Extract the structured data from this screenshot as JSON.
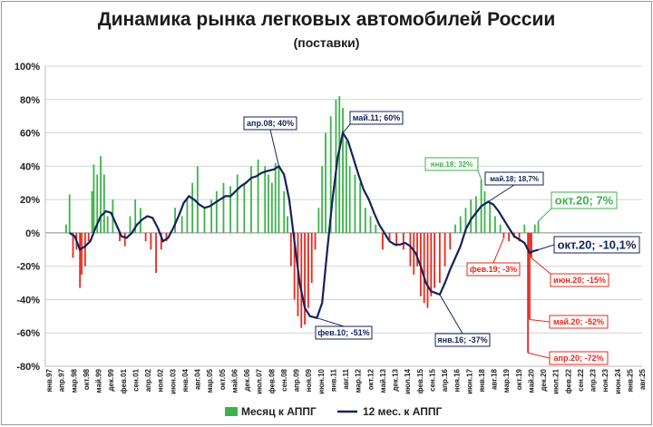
{
  "chart_data": {
    "type": "bar+line",
    "title": "Динамика рынка легковых автомобилей России",
    "subtitle": "(поставки)",
    "ylim": [
      -80,
      100
    ],
    "yticks": [
      "100%",
      "80%",
      "60%",
      "40%",
      "20%",
      "0%",
      "-20%",
      "-40%",
      "-60%",
      "-80%"
    ],
    "x_range": [
      "янв.97",
      "окт.25"
    ],
    "xticks": [
      "янв.97",
      "апр.97",
      "мар.98",
      "окт.98",
      "май.99",
      "дек.99",
      "фев.01",
      "сен.01",
      "апр.02",
      "ноя.02",
      "июн.03",
      "янв.04",
      "авг.04",
      "мар.05",
      "окт.05",
      "май.06",
      "дек.06",
      "июл.07",
      "фев.08",
      "сен.08",
      "апр.09",
      "ноя.09",
      "июн.10",
      "янв.11",
      "авг.11",
      "мар.12",
      "окт.12",
      "май.13",
      "дек.13",
      "июл.14",
      "фев.15",
      "сен.15",
      "апр.16",
      "ноя.16",
      "июн.17",
      "янв.18",
      "авг.18",
      "мар.19",
      "окт.19",
      "май.20",
      "дек.20",
      "июл.21",
      "фев.22",
      "сен.22",
      "апр.23",
      "ноя.23",
      "июн.24",
      "янв.25",
      "авг.25"
    ],
    "grid": true,
    "legend_position": "bottom",
    "colors": {
      "positive": "#3cb34a",
      "negative": "#e8281e",
      "line": "#15225a"
    },
    "series": [
      {
        "name": "Месяц к АППГ",
        "kind": "bar",
        "points": [
          [
            "1998-01",
            5
          ],
          [
            "1998-03",
            23
          ],
          [
            "1998-05",
            -15
          ],
          [
            "1998-07",
            -10
          ],
          [
            "1998-09",
            -33
          ],
          [
            "1998-10",
            -25
          ],
          [
            "1998-12",
            -20
          ],
          [
            "1999-02",
            -5
          ],
          [
            "1999-04",
            25
          ],
          [
            "1999-05",
            41
          ],
          [
            "1999-07",
            35
          ],
          [
            "1999-09",
            46
          ],
          [
            "1999-11",
            35
          ],
          [
            "2000-01",
            10
          ],
          [
            "2000-04",
            20
          ],
          [
            "2000-08",
            -5
          ],
          [
            "2000-11",
            -8
          ],
          [
            "2001-02",
            10
          ],
          [
            "2001-05",
            20
          ],
          [
            "2001-08",
            15
          ],
          [
            "2001-11",
            -5
          ],
          [
            "2002-02",
            -10
          ],
          [
            "2002-05",
            -24
          ],
          [
            "2002-08",
            -10
          ],
          [
            "2002-11",
            -5
          ],
          [
            "2003-04",
            15
          ],
          [
            "2003-08",
            10
          ],
          [
            "2003-11",
            20
          ],
          [
            "2004-02",
            30
          ],
          [
            "2004-05",
            40
          ],
          [
            "2004-09",
            15
          ],
          [
            "2005-01",
            20
          ],
          [
            "2005-04",
            25
          ],
          [
            "2005-08",
            30
          ],
          [
            "2005-12",
            28
          ],
          [
            "2006-04",
            35
          ],
          [
            "2006-08",
            30
          ],
          [
            "2006-12",
            40
          ],
          [
            "2007-04",
            44
          ],
          [
            "2007-08",
            40
          ],
          [
            "2007-10",
            35
          ],
          [
            "2007-12",
            30
          ],
          [
            "2008-02",
            42
          ],
          [
            "2008-04",
            40
          ],
          [
            "2008-07",
            25
          ],
          [
            "2008-09",
            10
          ],
          [
            "2008-11",
            -20
          ],
          [
            "2009-01",
            -40
          ],
          [
            "2009-03",
            -50
          ],
          [
            "2009-05",
            -57
          ],
          [
            "2009-07",
            -55
          ],
          [
            "2009-09",
            -45
          ],
          [
            "2009-11",
            -30
          ],
          [
            "2010-01",
            -10
          ],
          [
            "2010-03",
            15
          ],
          [
            "2010-05",
            40
          ],
          [
            "2010-07",
            60
          ],
          [
            "2010-10",
            70
          ],
          [
            "2011-01",
            80
          ],
          [
            "2011-03",
            82
          ],
          [
            "2011-05",
            75
          ],
          [
            "2011-07",
            55
          ],
          [
            "2011-09",
            40
          ],
          [
            "2011-12",
            35
          ],
          [
            "2012-03",
            30
          ],
          [
            "2012-06",
            15
          ],
          [
            "2012-09",
            10
          ],
          [
            "2012-12",
            5
          ],
          [
            "2013-04",
            -10
          ],
          [
            "2013-08",
            -5
          ],
          [
            "2013-12",
            -8
          ],
          [
            "2014-04",
            -10
          ],
          [
            "2014-08",
            -20
          ],
          [
            "2014-10",
            -25
          ],
          [
            "2014-12",
            -20
          ],
          [
            "2015-02",
            -38
          ],
          [
            "2015-04",
            -42
          ],
          [
            "2015-06",
            -45
          ],
          [
            "2015-08",
            -38
          ],
          [
            "2015-10",
            -33
          ],
          [
            "2016-01",
            -30
          ],
          [
            "2016-04",
            -20
          ],
          [
            "2016-07",
            -10
          ],
          [
            "2016-10",
            5
          ],
          [
            "2017-01",
            10
          ],
          [
            "2017-04",
            15
          ],
          [
            "2017-07",
            20
          ],
          [
            "2017-10",
            22
          ],
          [
            "2018-01",
            32
          ],
          [
            "2018-03",
            25
          ],
          [
            "2018-06",
            18
          ],
          [
            "2018-09",
            10
          ],
          [
            "2018-12",
            5
          ],
          [
            "2019-02",
            -3
          ],
          [
            "2019-05",
            -5
          ],
          [
            "2019-08",
            -3
          ],
          [
            "2019-11",
            -5
          ],
          [
            "2020-02",
            5
          ],
          [
            "2020-04",
            -72
          ],
          [
            "2020-05",
            -52
          ],
          [
            "2020-06",
            -15
          ],
          [
            "2020-08",
            5
          ],
          [
            "2020-10",
            7
          ]
        ]
      },
      {
        "name": "12 мес. к АППГ",
        "kind": "line",
        "points": [
          [
            "1998-03",
            0
          ],
          [
            "1998-06",
            -2
          ],
          [
            "1998-09",
            -10
          ],
          [
            "1998-12",
            -8
          ],
          [
            "1999-03",
            -5
          ],
          [
            "1999-06",
            3
          ],
          [
            "1999-09",
            10
          ],
          [
            "1999-12",
            13
          ],
          [
            "2000-03",
            12
          ],
          [
            "2000-06",
            5
          ],
          [
            "2000-09",
            -2
          ],
          [
            "2000-12",
            -3
          ],
          [
            "2001-03",
            0
          ],
          [
            "2001-06",
            5
          ],
          [
            "2001-09",
            8
          ],
          [
            "2001-12",
            10
          ],
          [
            "2002-03",
            9
          ],
          [
            "2002-06",
            3
          ],
          [
            "2002-09",
            -5
          ],
          [
            "2002-12",
            -3
          ],
          [
            "2003-03",
            3
          ],
          [
            "2003-06",
            10
          ],
          [
            "2003-09",
            18
          ],
          [
            "2003-12",
            22
          ],
          [
            "2004-03",
            20
          ],
          [
            "2004-06",
            17
          ],
          [
            "2004-09",
            15
          ],
          [
            "2004-12",
            16
          ],
          [
            "2005-03",
            18
          ],
          [
            "2005-06",
            20
          ],
          [
            "2005-09",
            22
          ],
          [
            "2005-12",
            22
          ],
          [
            "2006-03",
            25
          ],
          [
            "2006-06",
            28
          ],
          [
            "2006-09",
            30
          ],
          [
            "2006-12",
            33
          ],
          [
            "2007-03",
            34
          ],
          [
            "2007-06",
            36
          ],
          [
            "2007-09",
            37
          ],
          [
            "2008-01",
            38
          ],
          [
            "2008-04",
            40
          ],
          [
            "2008-07",
            35
          ],
          [
            "2008-10",
            20
          ],
          [
            "2009-01",
            -5
          ],
          [
            "2009-04",
            -30
          ],
          [
            "2009-07",
            -45
          ],
          [
            "2009-10",
            -50
          ],
          [
            "2010-02",
            -51
          ],
          [
            "2010-05",
            -42
          ],
          [
            "2010-08",
            -10
          ],
          [
            "2010-11",
            20
          ],
          [
            "2011-02",
            45
          ],
          [
            "2011-05",
            60
          ],
          [
            "2011-08",
            55
          ],
          [
            "2011-11",
            45
          ],
          [
            "2012-02",
            35
          ],
          [
            "2012-05",
            26
          ],
          [
            "2012-08",
            20
          ],
          [
            "2012-11",
            12
          ],
          [
            "2013-02",
            5
          ],
          [
            "2013-05",
            0
          ],
          [
            "2013-08",
            -5
          ],
          [
            "2013-11",
            -7
          ],
          [
            "2014-02",
            -7
          ],
          [
            "2014-05",
            -6
          ],
          [
            "2014-08",
            -8
          ],
          [
            "2014-11",
            -12
          ],
          [
            "2015-02",
            -20
          ],
          [
            "2015-05",
            -30
          ],
          [
            "2015-08",
            -35
          ],
          [
            "2016-01",
            -37
          ],
          [
            "2016-04",
            -30
          ],
          [
            "2016-07",
            -22
          ],
          [
            "2016-10",
            -15
          ],
          [
            "2017-01",
            -8
          ],
          [
            "2017-04",
            2
          ],
          [
            "2017-07",
            8
          ],
          [
            "2017-10",
            12
          ],
          [
            "2018-01",
            16
          ],
          [
            "2018-05",
            18.7
          ],
          [
            "2018-08",
            17
          ],
          [
            "2018-11",
            13
          ],
          [
            "2019-02",
            8
          ],
          [
            "2019-05",
            3
          ],
          [
            "2019-08",
            -2
          ],
          [
            "2019-11",
            -4
          ],
          [
            "2020-02",
            -6
          ],
          [
            "2020-05",
            -12
          ],
          [
            "2020-07",
            -11
          ],
          [
            "2020-10",
            -10.1
          ]
        ]
      }
    ],
    "annotations": [
      {
        "label": "апр.08; 40%",
        "date": "2008-04",
        "value": 40,
        "color": "#15225a"
      },
      {
        "label": "май.11; 60%",
        "date": "2011-05",
        "value": 60,
        "color": "#15225a"
      },
      {
        "label": "фев.10; -51%",
        "date": "2010-02",
        "value": -51,
        "color": "#15225a"
      },
      {
        "label": "янв.18; 32%",
        "date": "2018-01",
        "value": 32,
        "color": "#3cb34a"
      },
      {
        "label": "май.18; 18,7%",
        "date": "2018-05",
        "value": 18.7,
        "color": "#15225a"
      },
      {
        "label": "окт.20; 7%",
        "date": "2020-10",
        "value": 7,
        "color": "#3cb34a"
      },
      {
        "label": "окт.20; -10,1%",
        "date": "2020-10",
        "value": -10.1,
        "color": "#15225a"
      },
      {
        "label": "фев.19; -3%",
        "date": "2019-02",
        "value": -3,
        "color": "#e8281e"
      },
      {
        "label": "янв.16; -37%",
        "date": "2016-01",
        "value": -37,
        "color": "#15225a"
      },
      {
        "label": "июн.20; -15%",
        "date": "2020-06",
        "value": -15,
        "color": "#e8281e"
      },
      {
        "label": "май.20; -52%",
        "date": "2020-05",
        "value": -52,
        "color": "#e8281e"
      },
      {
        "label": "апр.20; -72%",
        "date": "2020-04",
        "value": -72,
        "color": "#e8281e"
      }
    ]
  }
}
